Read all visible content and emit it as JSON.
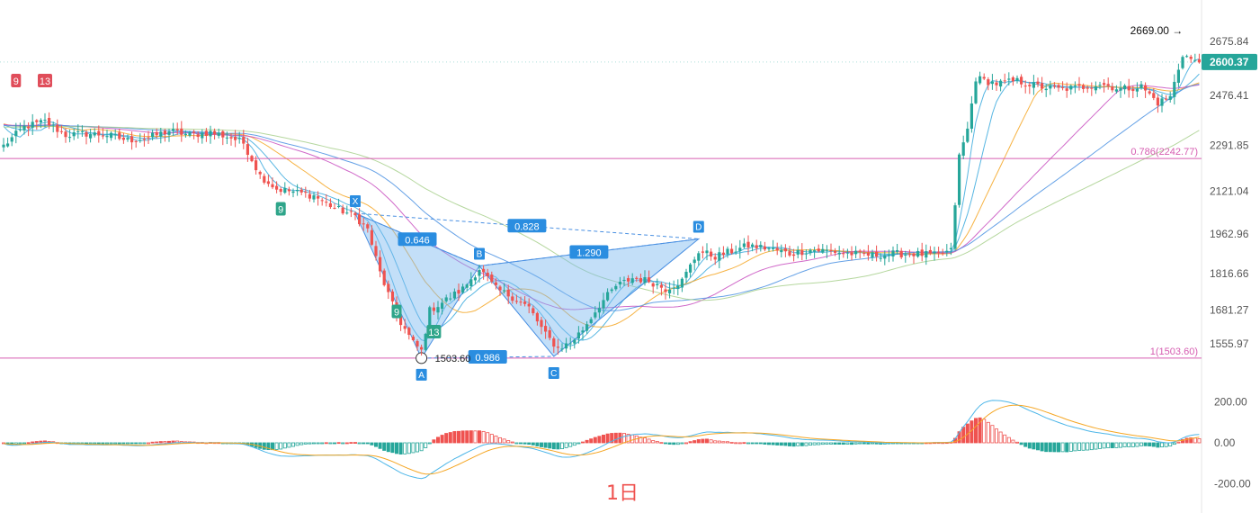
{
  "chart_data": {
    "type": "candlestick",
    "timeframe_label": "1日",
    "colors": {
      "up": "#26a69a",
      "down": "#ef5350",
      "ma_fast": "#3aa9dd",
      "ma_mid": "#f5a623",
      "ma_slow": "#c84fbf",
      "ma_slower": "#4a90e2",
      "ma_slowest": "#a8d08d",
      "level_line": "#d65db1",
      "pattern_fill": "#7ab8f0",
      "current_price_bg": "#26a69a",
      "macd_line": "#4db6e8",
      "signal_line": "#f5a623"
    },
    "price_axis": {
      "min": 1430,
      "max": 2730,
      "ticks": [
        "2675.84",
        "2476.41",
        "2291.85",
        "2121.04",
        "1962.96",
        "1816.66",
        "1681.27",
        "1555.97"
      ]
    },
    "current_price": "2600.37",
    "high_marker": "2669.00 →",
    "levels": [
      {
        "label": "0.786(2242.77)",
        "value": 2242.77
      },
      {
        "label": "1(1503.60)",
        "value": 1503.6
      }
    ],
    "pattern": {
      "points": [
        {
          "label": "X",
          "x": 85,
          "price": 2040
        },
        {
          "label": "A",
          "x": 101,
          "price": 1503.6
        },
        {
          "label": "B",
          "x": 115,
          "price": 1845
        },
        {
          "label": "C",
          "x": 133,
          "price": 1510
        },
        {
          "label": "D",
          "x": 168,
          "price": 1945
        }
      ],
      "ratios": [
        {
          "label": "0.646",
          "from": 0,
          "to": 2
        },
        {
          "label": "0.828",
          "from": 0,
          "to": 4
        },
        {
          "label": "1.290",
          "from": 2,
          "to": 4
        },
        {
          "label": "0.986",
          "from": 1,
          "to": 3
        }
      ],
      "low_price_label": "1503.60"
    },
    "count_markers": [
      {
        "label": "9",
        "type": "down",
        "x": 3,
        "price": 2530
      },
      {
        "label": "13",
        "type": "down",
        "x": 10,
        "price": 2530
      },
      {
        "label": "9",
        "type": "up",
        "x": 67,
        "price": 2055
      },
      {
        "label": "9",
        "type": "up",
        "x": 95,
        "price": 1675
      },
      {
        "label": "13",
        "type": "up",
        "x": 104,
        "price": 1600
      }
    ],
    "close_anchors": [
      [
        0,
        2290
      ],
      [
        5,
        2360
      ],
      [
        10,
        2380
      ],
      [
        15,
        2330
      ],
      [
        20,
        2335
      ],
      [
        25,
        2330
      ],
      [
        30,
        2310
      ],
      [
        35,
        2320
      ],
      [
        40,
        2345
      ],
      [
        45,
        2330
      ],
      [
        50,
        2340
      ],
      [
        55,
        2320
      ],
      [
        58,
        2300
      ],
      [
        62,
        2180
      ],
      [
        66,
        2130
      ],
      [
        70,
        2120
      ],
      [
        75,
        2105
      ],
      [
        80,
        2060
      ],
      [
        85,
        2030
      ],
      [
        88,
        1980
      ],
      [
        91,
        1820
      ],
      [
        95,
        1660
      ],
      [
        99,
        1560
      ],
      [
        101,
        1530
      ],
      [
        103,
        1680
      ],
      [
        107,
        1720
      ],
      [
        111,
        1760
      ],
      [
        115,
        1835
      ],
      [
        119,
        1760
      ],
      [
        123,
        1730
      ],
      [
        127,
        1690
      ],
      [
        131,
        1590
      ],
      [
        134,
        1540
      ],
      [
        137,
        1560
      ],
      [
        140,
        1610
      ],
      [
        144,
        1700
      ],
      [
        148,
        1770
      ],
      [
        152,
        1800
      ],
      [
        156,
        1790
      ],
      [
        160,
        1760
      ],
      [
        164,
        1790
      ],
      [
        168,
        1900
      ],
      [
        172,
        1880
      ],
      [
        176,
        1900
      ],
      [
        180,
        1920
      ],
      [
        185,
        1910
      ],
      [
        190,
        1890
      ],
      [
        195,
        1905
      ],
      [
        200,
        1900
      ],
      [
        205,
        1890
      ],
      [
        210,
        1885
      ],
      [
        215,
        1890
      ],
      [
        220,
        1890
      ],
      [
        225,
        1885
      ],
      [
        229,
        1900
      ],
      [
        231,
        2250
      ],
      [
        233,
        2350
      ],
      [
        235,
        2540
      ],
      [
        240,
        2520
      ],
      [
        245,
        2530
      ],
      [
        250,
        2510
      ],
      [
        255,
        2500
      ],
      [
        260,
        2505
      ],
      [
        265,
        2520
      ],
      [
        270,
        2500
      ],
      [
        275,
        2510
      ],
      [
        279,
        2450
      ],
      [
        282,
        2470
      ],
      [
        285,
        2630
      ],
      [
        288,
        2600
      ]
    ],
    "macd": {
      "ticks": [
        "200.00",
        "0.00",
        "-200.00"
      ],
      "range": [
        -220,
        220
      ]
    }
  }
}
